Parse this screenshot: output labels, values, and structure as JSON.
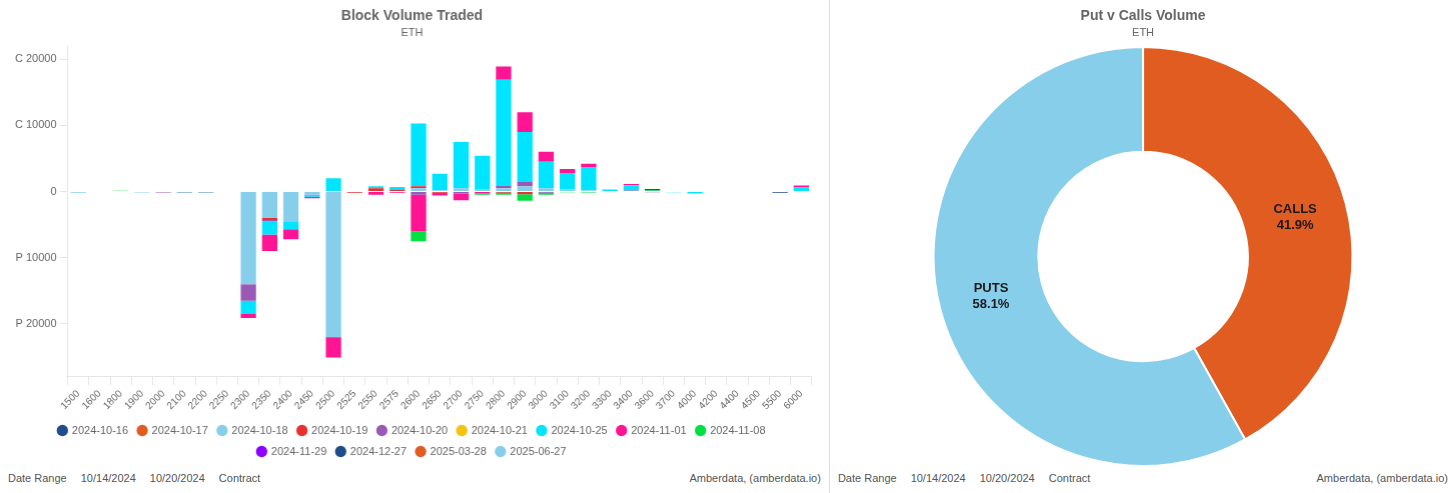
{
  "chart_data": [
    {
      "type": "bar",
      "title": "Block Volume Traded",
      "subtitle": "ETH",
      "annotations": [
        "Date Range",
        "10/14/2024",
        "10/20/2024",
        "Contract",
        "Amberdata, (amberdata.io)"
      ],
      "categories": [
        "1500",
        "1600",
        "1800",
        "1900",
        "2000",
        "2100",
        "2200",
        "2250",
        "2300",
        "2350",
        "2400",
        "2450",
        "2500",
        "2525",
        "2550",
        "2575",
        "2600",
        "2650",
        "2700",
        "2750",
        "2800",
        "2900",
        "3000",
        "3100",
        "3200",
        "3300",
        "3400",
        "3600",
        "3700",
        "4000",
        "4200",
        "4400",
        "4500",
        "5500",
        "6000"
      ],
      "series": [
        {
          "name": "2024-10-16",
          "color": "#1e4d8c",
          "values": [
            0,
            -50,
            0,
            0,
            0,
            -100,
            -120,
            0,
            0,
            0,
            0,
            0,
            0,
            0,
            0,
            0,
            0,
            0,
            0,
            0,
            0,
            0,
            0,
            0,
            0,
            0,
            0,
            0,
            0,
            0,
            0,
            0,
            0,
            -200,
            0
          ]
        },
        {
          "name": "2024-10-17",
          "color": "#e05c20",
          "values": [
            0,
            0,
            0,
            0,
            0,
            0,
            0,
            0,
            0,
            0,
            0,
            0,
            0,
            0,
            0,
            0,
            0,
            0,
            0,
            0,
            0,
            0,
            0,
            0,
            0,
            0,
            0,
            0,
            0,
            0,
            0,
            0,
            0,
            0,
            0
          ]
        },
        {
          "name": "2024-10-18",
          "color": "#87ceeb",
          "values": [
            -200,
            0,
            80,
            -150,
            -80,
            -80,
            -50,
            -80,
            -14000,
            -4000,
            -4500,
            -500,
            -22000,
            0,
            0,
            0,
            500,
            200,
            500,
            400,
            500,
            800,
            500,
            300,
            200,
            100,
            0,
            0,
            0,
            0,
            0,
            0,
            0,
            0,
            0
          ]
        },
        {
          "name": "2024-10-19",
          "color": "#e83030",
          "values": [
            0,
            0,
            0,
            0,
            0,
            0,
            0,
            0,
            0,
            -300,
            0,
            0,
            -100,
            -200,
            500,
            300,
            300,
            -200,
            0,
            0,
            -200,
            -400,
            0,
            0,
            0,
            0,
            0,
            0,
            0,
            0,
            0,
            0,
            0,
            0,
            0
          ]
        },
        {
          "name": "2024-10-20",
          "color": "#9b59b6",
          "values": [
            0,
            0,
            0,
            0,
            -60,
            0,
            0,
            0,
            -2500,
            -200,
            0,
            -100,
            0,
            0,
            0,
            0,
            -500,
            0,
            -300,
            0,
            400,
            700,
            -200,
            0,
            0,
            0,
            150,
            -100,
            0,
            0,
            0,
            0,
            0,
            0,
            0
          ]
        },
        {
          "name": "2024-10-21",
          "color": "#f1c40f",
          "values": [
            0,
            0,
            0,
            0,
            0,
            0,
            0,
            0,
            0,
            0,
            0,
            0,
            0,
            0,
            0,
            0,
            0,
            0,
            0,
            0,
            0,
            0,
            0,
            0,
            0,
            0,
            0,
            0,
            0,
            0,
            0,
            0,
            0,
            0,
            0
          ]
        },
        {
          "name": "2024-10-25",
          "color": "#00e5ff",
          "values": [
            0,
            0,
            0,
            0,
            0,
            0,
            0,
            0,
            -2000,
            -2000,
            -1200,
            -200,
            2000,
            0,
            300,
            400,
            9500,
            2500,
            7000,
            5000,
            16000,
            7500,
            4000,
            2500,
            3500,
            200,
            800,
            0,
            -100,
            -300,
            0,
            0,
            0,
            0,
            600
          ]
        },
        {
          "name": "2024-11-01",
          "color": "#ff1493",
          "values": [
            0,
            0,
            0,
            0,
            0,
            0,
            0,
            0,
            -600,
            -2500,
            -1500,
            -200,
            -3000,
            0,
            -500,
            -200,
            -5500,
            -400,
            -1000,
            -300,
            2000,
            3000,
            1500,
            600,
            500,
            0,
            200,
            0,
            0,
            0,
            0,
            0,
            0,
            0,
            300
          ]
        },
        {
          "name": "2024-11-08",
          "color": "#00e040",
          "values": [
            0,
            0,
            50,
            0,
            0,
            0,
            0,
            0,
            0,
            0,
            0,
            0,
            0,
            0,
            0,
            0,
            -1500,
            0,
            0,
            -200,
            -300,
            -1000,
            -300,
            -100,
            -150,
            0,
            0,
            200,
            0,
            0,
            0,
            0,
            0,
            0,
            0
          ]
        },
        {
          "name": "2024-11-29",
          "color": "#8b00ff",
          "values": [
            0,
            0,
            0,
            0,
            0,
            0,
            0,
            0,
            0,
            0,
            0,
            0,
            0,
            0,
            0,
            0,
            0,
            0,
            0,
            0,
            0,
            0,
            0,
            0,
            0,
            0,
            0,
            200,
            0,
            0,
            0,
            0,
            0,
            0,
            0
          ]
        },
        {
          "name": "2024-12-27",
          "color": "#1e4d8c",
          "values": [
            0,
            0,
            0,
            0,
            0,
            0,
            0,
            0,
            0,
            0,
            0,
            0,
            0,
            0,
            0,
            0,
            0,
            0,
            0,
            0,
            0,
            0,
            0,
            0,
            0,
            0,
            0,
            0,
            0,
            0,
            0,
            0,
            0,
            0,
            0
          ]
        },
        {
          "name": "2025-03-28",
          "color": "#e05c20",
          "values": [
            0,
            0,
            0,
            0,
            0,
            0,
            0,
            0,
            0,
            0,
            0,
            0,
            0,
            0,
            0,
            0,
            0,
            0,
            0,
            0,
            0,
            0,
            0,
            0,
            0,
            0,
            0,
            0,
            0,
            0,
            0,
            0,
            0,
            0,
            0
          ]
        },
        {
          "name": "2025-06-27",
          "color": "#87ceeb",
          "values": [
            0,
            0,
            0,
            0,
            0,
            0,
            0,
            0,
            0,
            0,
            0,
            0,
            0,
            0,
            0,
            0,
            0,
            0,
            0,
            0,
            0,
            0,
            0,
            0,
            0,
            0,
            0,
            0,
            0,
            0,
            0,
            0,
            0,
            0,
            0
          ]
        }
      ],
      "stacked": true,
      "grid": false,
      "legend": "bottom",
      "ylim": [
        -28000,
        22000
      ],
      "yticks": [
        {
          "value": -20000,
          "label": "P 20000"
        },
        {
          "value": -10000,
          "label": "P 10000"
        },
        0,
        {
          "value": 10000,
          "label": "C 10000"
        },
        {
          "value": 20000,
          "label": "C 20000"
        }
      ]
    },
    {
      "type": "doughnut",
      "title": "Put v Calls Volume",
      "subtitle": "ETH",
      "annotations": [
        "Date Range",
        "10/14/2024",
        "10/20/2024",
        "Contract",
        "Amberdata, (amberdata.io)"
      ],
      "categories": [
        "CALLS",
        "PUTS"
      ],
      "values": [
        41.9,
        58.1
      ],
      "value_labels": [
        "41.9%",
        "58.1%"
      ],
      "colors": [
        "#e05c20",
        "#87ceeb"
      ],
      "data_labels": true,
      "legend": false
    }
  ]
}
